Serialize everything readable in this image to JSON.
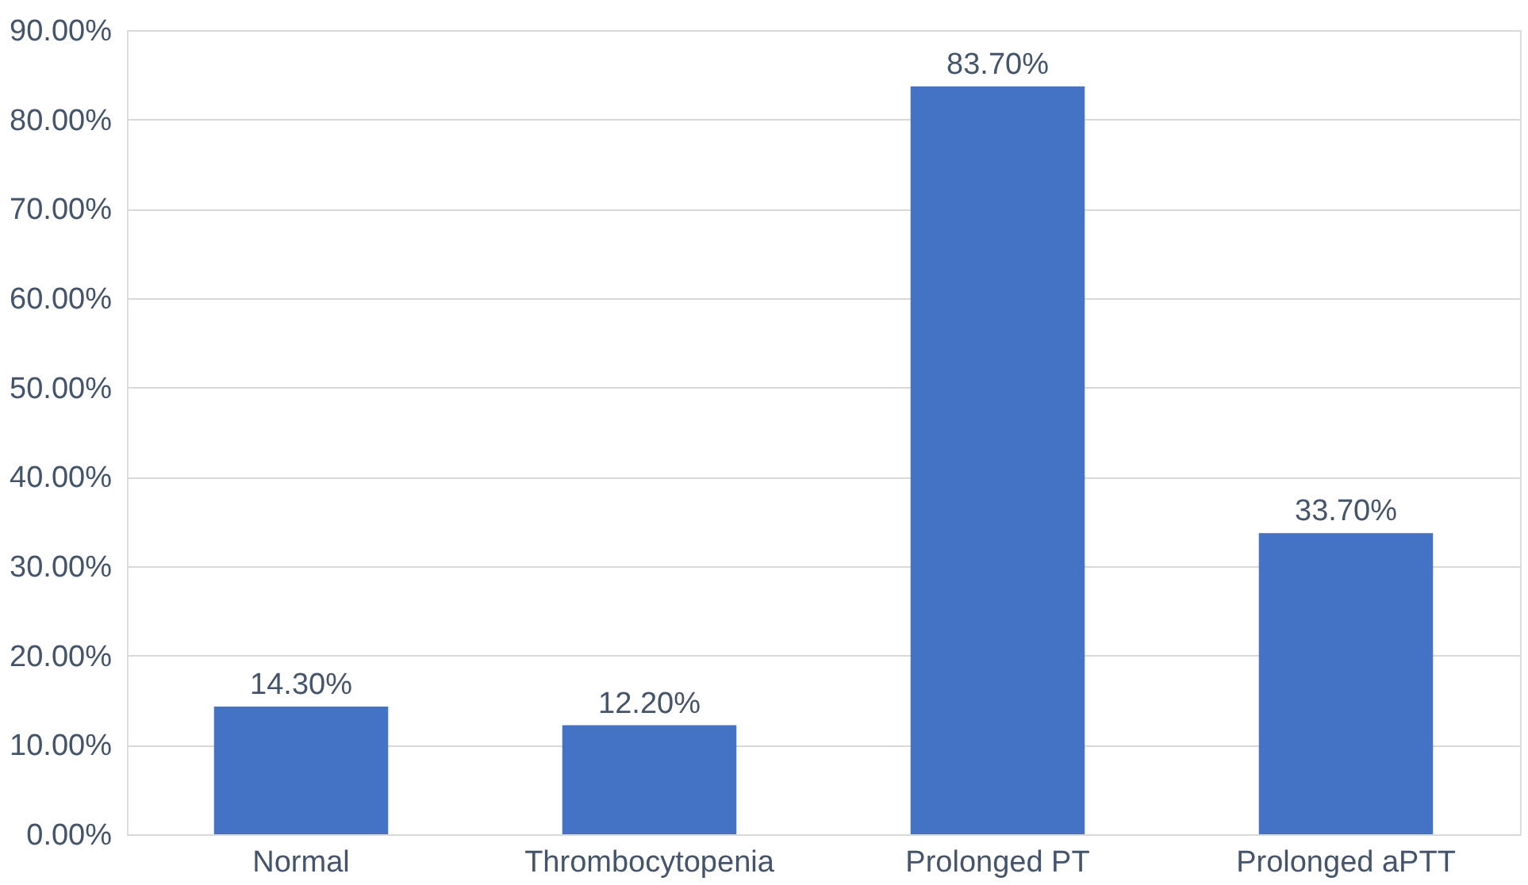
{
  "chart_data": {
    "type": "bar",
    "categories": [
      "Normal",
      "Thrombocytopenia",
      "Prolonged PT",
      "Prolonged aPTT"
    ],
    "values": [
      14.3,
      12.2,
      83.7,
      33.7
    ],
    "value_labels": [
      "14.30%",
      "12.20%",
      "83.70%",
      "33.70%"
    ],
    "color": "#4472c4",
    "ylim": [
      0,
      90
    ],
    "yticks": [
      {
        "value": 0,
        "label": "0.00%"
      },
      {
        "value": 10,
        "label": "10.00%"
      },
      {
        "value": 20,
        "label": "20.00%"
      },
      {
        "value": 30,
        "label": "30.00%"
      },
      {
        "value": 40,
        "label": "40.00%"
      },
      {
        "value": 50,
        "label": "50.00%"
      },
      {
        "value": 60,
        "label": "60.00%"
      },
      {
        "value": 70,
        "label": "70.00%"
      },
      {
        "value": 80,
        "label": "80.00%"
      },
      {
        "value": 90,
        "label": "90.00%"
      }
    ],
    "grid": "y"
  }
}
